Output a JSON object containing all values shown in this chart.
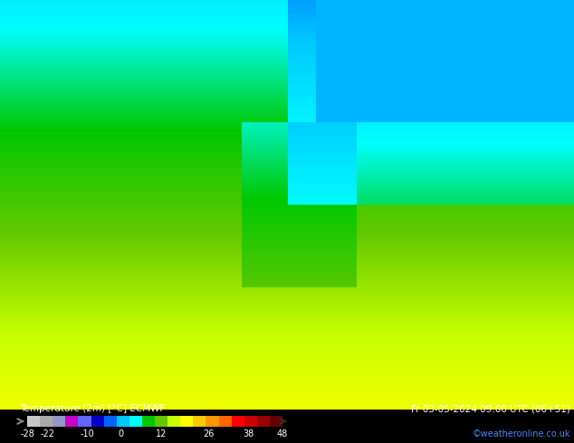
{
  "title_left": "Temperature (2m) [°C] ECMWF",
  "title_right": "Fr 03-05-2024 09:00 UTC (06+51)",
  "credit": "©weatheronline.co.uk",
  "colorbar_ticks": [
    -28,
    -22,
    -10,
    0,
    12,
    26,
    38,
    48
  ],
  "colorbar_vmin": -28,
  "colorbar_vmax": 48,
  "colorbar_colors": [
    "#aaaaaa",
    "#bbbbbb",
    "#9696c8",
    "#b464b4",
    "#c800c8",
    "#8c64d2",
    "#6464ff",
    "#3232e6",
    "#0000c8",
    "#0032e6",
    "#0064ff",
    "#0096ff",
    "#00c8ff",
    "#00e4ff",
    "#00ffff",
    "#00e4c8",
    "#00c800",
    "#32c800",
    "#64c800",
    "#96d200",
    "#c8ff00",
    "#e6e600",
    "#ffff00",
    "#ffe600",
    "#ffc800",
    "#ffaa00",
    "#ff9600",
    "#ff7800",
    "#ff6400",
    "#ff3200",
    "#ff0000",
    "#e60000",
    "#c80000",
    "#aa0000",
    "#960000",
    "#780000",
    "#640000"
  ],
  "colorbar_boundaries": [
    -28,
    -26,
    -24,
    -22,
    -20,
    -18,
    -16,
    -14,
    -12,
    -10,
    -8,
    -6,
    -4,
    -2,
    0,
    2,
    4,
    6,
    8,
    10,
    12,
    14,
    16,
    18,
    20,
    22,
    24,
    26,
    28,
    30,
    32,
    34,
    36,
    38,
    40,
    42,
    44,
    48
  ],
  "map_bg_color": "#7ec8e3",
  "fig_bg_color": "#000000",
  "bottom_bar_color": "#000000",
  "credit_color": "#4488ff",
  "map_colors": {
    "deep_sea": "#7ec8e3",
    "land_cold": "#2da832",
    "land_warm": "#ffd700",
    "land_hot": "#ff9600"
  }
}
